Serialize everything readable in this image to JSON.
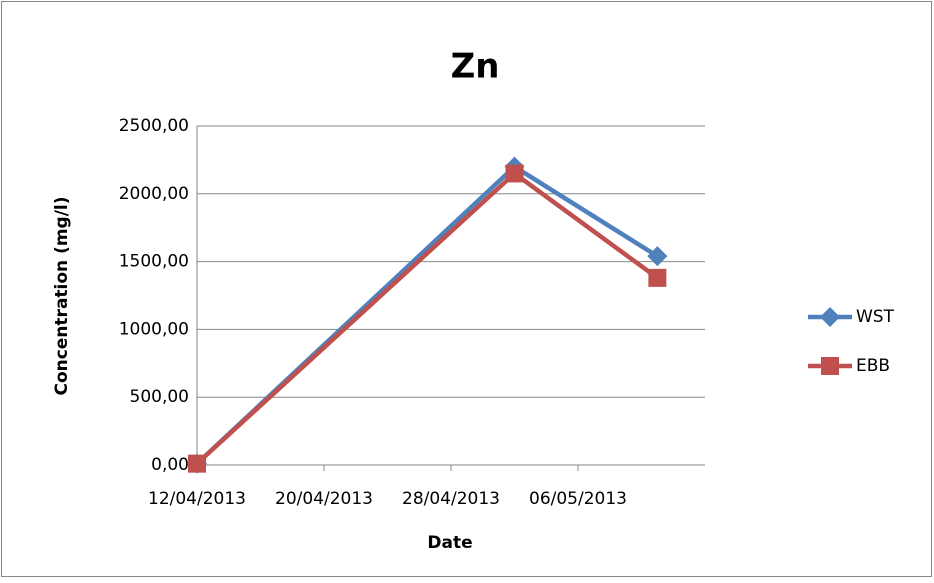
{
  "chart_data": {
    "type": "line",
    "title": "Zn",
    "x_label": "Date",
    "y_label": "Concentration (mg/l)",
    "x": [
      "12/04/2013",
      "02/05/2013",
      "11/05/2013"
    ],
    "series": [
      {
        "name": "WST",
        "color": "#4f81bd",
        "marker": "diamond",
        "values": [
          10,
          2200,
          1540
        ]
      },
      {
        "name": "EBB",
        "color": "#c0504d",
        "marker": "square",
        "values": [
          10,
          2150,
          1380
        ]
      }
    ],
    "xlim": [
      "12/04/2013",
      "14/05/2013"
    ],
    "xticks": [
      "12/04/2013",
      "20/04/2013",
      "28/04/2013",
      "06/05/2013"
    ],
    "ylim": [
      0,
      2500
    ],
    "yticks": [
      {
        "value": 0,
        "label": "0,00"
      },
      {
        "value": 500,
        "label": "500,00"
      },
      {
        "value": 1000,
        "label": "1000,00"
      },
      {
        "value": 1500,
        "label": "1500,00"
      },
      {
        "value": 2000,
        "label": "2000,00"
      },
      {
        "value": 2500,
        "label": "2500,00"
      }
    ],
    "grid": true,
    "legend": "right"
  }
}
